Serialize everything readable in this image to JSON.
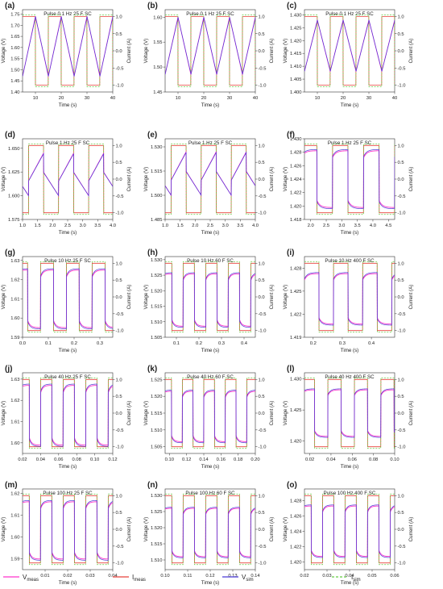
{
  "legend": [
    {
      "key": "Vmeas",
      "base": "V",
      "sub": "meas",
      "color": "#ff33cc",
      "dash": false
    },
    {
      "key": "Imeas",
      "base": "I",
      "sub": "meas",
      "color": "#e8403a",
      "dash": false
    },
    {
      "key": "Vsim",
      "base": "V",
      "sub": "sim",
      "color": "#4b3bd6",
      "dash": false
    },
    {
      "key": "Isim",
      "base": "I",
      "sub": "sim",
      "color": "#66cc44",
      "dash": true
    }
  ],
  "colors": {
    "vmeas": "#ff33cc",
    "imeas": "#e8403a",
    "vsim": "#4b3bd6",
    "isim": "#66cc44",
    "axis": "#333333"
  },
  "chart_data": [
    {
      "panel": "(a)",
      "type": "line",
      "title": "Pulse 0.1 Hz 25 F SC",
      "xlabel": "Time (s)",
      "ylabel": "Voltage (V)",
      "y2label": "Current (A)",
      "xlim": [
        5,
        40
      ],
      "xticks": [
        10,
        20,
        30,
        40
      ],
      "ylim": [
        1.4,
        1.77
      ],
      "yticks": [
        1.4,
        1.45,
        1.5,
        1.55,
        1.6,
        1.65,
        1.7,
        1.75
      ],
      "y2lim": [
        -1.2,
        1.2
      ],
      "y2ticks": [
        -1.0,
        -0.5,
        0.0,
        0.5,
        1.0
      ],
      "period": 10,
      "phase": 5,
      "vlow": 1.47,
      "vhigh": 1.74,
      "waveform": "triangle"
    },
    {
      "panel": "(b)",
      "type": "line",
      "title": "Pulse 0.1 Hz 25 F SC",
      "xlabel": "Time (s)",
      "ylabel": "Voltage (V)",
      "y2label": "Current (A)",
      "xlim": [
        5,
        40
      ],
      "xticks": [
        10,
        20,
        30,
        40
      ],
      "ylim": [
        1.45,
        1.615
      ],
      "yticks": [
        1.45,
        1.5,
        1.55,
        1.6
      ],
      "y2lim": [
        -1.2,
        1.2
      ],
      "y2ticks": [
        -1.0,
        -0.5,
        0.0,
        0.5,
        1.0
      ],
      "period": 10,
      "phase": 5,
      "vlow": 1.485,
      "vhigh": 1.6,
      "waveform": "triangle"
    },
    {
      "panel": "(c)",
      "type": "line",
      "title": "Pulse 0.1 Hz 25 F SC",
      "xlabel": "Time (s)",
      "ylabel": "Voltage (V)",
      "y2label": "Current (A)",
      "xlim": [
        5,
        40
      ],
      "xticks": [
        10,
        20,
        30,
        40
      ],
      "ylim": [
        1.4,
        1.432
      ],
      "yticks": [
        1.4,
        1.405,
        1.41,
        1.415,
        1.42,
        1.425,
        1.43
      ],
      "y2lim": [
        -1.2,
        1.2
      ],
      "y2ticks": [
        -1.0,
        -0.5,
        0.0,
        0.5,
        1.0
      ],
      "period": 10,
      "phase": 5,
      "vlow": 1.408,
      "vhigh": 1.428,
      "waveform": "triangle"
    },
    {
      "panel": "(d)",
      "type": "line",
      "title": "Pulse 1 Hz 25 F SC",
      "xlabel": "Time (s)",
      "ylabel": "Voltage (V)",
      "y2label": "Current (A)",
      "xlim": [
        1.0,
        4.0
      ],
      "xticks": [
        1.0,
        1.5,
        2.0,
        2.5,
        3.0,
        3.5,
        4.0
      ],
      "ylim": [
        1.575,
        1.66
      ],
      "yticks": [
        1.575,
        1.6,
        1.625,
        1.65
      ],
      "y2lim": [
        -1.2,
        1.2
      ],
      "y2ticks": [
        -1.0,
        -0.5,
        0.0,
        0.5,
        1.0
      ],
      "period": 1,
      "phase": 0.2,
      "vlow": 1.6,
      "vhigh": 1.645,
      "waveform": "sawjump"
    },
    {
      "panel": "(e)",
      "type": "line",
      "title": "Pulse 1 Hz 25 F SC",
      "xlabel": "Time (s)",
      "ylabel": "Voltage (V)",
      "y2label": "Current (A)",
      "xlim": [
        1.0,
        4.0
      ],
      "xticks": [
        1.0,
        1.5,
        2.0,
        2.5,
        3.0,
        3.5,
        4.0
      ],
      "ylim": [
        1.485,
        1.535
      ],
      "yticks": [
        1.485,
        1.5,
        1.515,
        1.53
      ],
      "y2lim": [
        -1.2,
        1.2
      ],
      "y2ticks": [
        -1.0,
        -0.5,
        0.0,
        0.5,
        1.0
      ],
      "period": 1,
      "phase": 0.2,
      "vlow": 1.5,
      "vhigh": 1.527,
      "waveform": "sawjump"
    },
    {
      "panel": "(f)",
      "type": "line",
      "title": "Pulse 1 Hz 25 F SC",
      "xlabel": "Time (s)",
      "ylabel": "Voltage (V)",
      "y2label": "Current (A)",
      "xlim": [
        1.8,
        4.7
      ],
      "xticks": [
        2.0,
        2.5,
        3.0,
        3.5,
        4.0,
        4.5
      ],
      "ylim": [
        1.418,
        1.43
      ],
      "yticks": [
        1.418,
        1.42,
        1.422,
        1.424,
        1.426,
        1.428,
        1.43
      ],
      "y2lim": [
        -1.2,
        1.2
      ],
      "y2ticks": [
        -1.0,
        -0.5,
        0.0,
        0.5,
        1.0
      ],
      "period": 1,
      "phase": 1.7,
      "vlow": 1.4195,
      "vhigh": 1.4285,
      "waveform": "square"
    },
    {
      "panel": "(g)",
      "type": "line",
      "title": "Pulse 10 Hz 25 F SC",
      "xlabel": "Time (s)",
      "ylabel": "Voltage (V)",
      "y2label": "Current (A)",
      "xlim": [
        0.0,
        0.35
      ],
      "xticks": [
        0.0,
        0.1,
        0.2,
        0.3
      ],
      "ylim": [
        1.59,
        1.632
      ],
      "yticks": [
        1.59,
        1.6,
        1.61,
        1.62,
        1.63
      ],
      "y2lim": [
        -1.2,
        1.2
      ],
      "y2ticks": [
        -1.0,
        -0.5,
        0.0,
        0.5,
        1.0
      ],
      "period": 0.1,
      "phase": -0.03,
      "vlow": 1.594,
      "vhigh": 1.626,
      "waveform": "square"
    },
    {
      "panel": "(h)",
      "type": "line",
      "title": "Pulse 10 Hz 60 F SC",
      "xlabel": "Time (s)",
      "ylabel": "Voltage (V)",
      "y2label": "Current (A)",
      "xlim": [
        0.05,
        0.45
      ],
      "xticks": [
        0.1,
        0.2,
        0.3,
        0.4
      ],
      "ylim": [
        1.505,
        1.531
      ],
      "yticks": [
        1.505,
        1.51,
        1.515,
        1.52,
        1.525,
        1.53
      ],
      "y2lim": [
        -1.2,
        1.2
      ],
      "y2ticks": [
        -1.0,
        -0.5,
        0.0,
        0.5,
        1.0
      ],
      "period": 0.1,
      "phase": 0.03,
      "vlow": 1.508,
      "vhigh": 1.526,
      "waveform": "square"
    },
    {
      "panel": "(i)",
      "type": "line",
      "title": "Pulse 10 Hz 400 F SC",
      "xlabel": "Time (s)",
      "ylabel": "Voltage (V)",
      "y2label": "Current (A)",
      "xlim": [
        0.17,
        0.48
      ],
      "xticks": [
        0.2,
        0.3,
        0.4
      ],
      "ylim": [
        1.419,
        1.4295
      ],
      "yticks": [
        1.419,
        1.422,
        1.425,
        1.428
      ],
      "y2lim": [
        -1.2,
        1.2
      ],
      "y2ticks": [
        -1.0,
        -0.5,
        0.0,
        0.5,
        1.0
      ],
      "period": 0.1,
      "phase": 0.17,
      "vlow": 1.4205,
      "vhigh": 1.4275,
      "waveform": "square"
    },
    {
      "panel": "(j)",
      "type": "line",
      "title": "Pulse 40 Hz 25 F SC",
      "xlabel": "Time (s)",
      "ylabel": "Voltage (V)",
      "y2label": "Current (A)",
      "xlim": [
        0.02,
        0.12
      ],
      "xticks": [
        0.02,
        0.04,
        0.06,
        0.08,
        0.1,
        0.12
      ],
      "ylim": [
        1.595,
        1.633
      ],
      "yticks": [
        1.6,
        1.61,
        1.62,
        1.63
      ],
      "y2lim": [
        -1.2,
        1.2
      ],
      "y2ticks": [
        -1.0,
        -0.5,
        0.0,
        0.5,
        1.0
      ],
      "period": 0.025,
      "phase": 0.015,
      "vlow": 1.598,
      "vhigh": 1.628,
      "waveform": "square"
    },
    {
      "panel": "(k)",
      "type": "line",
      "title": "Pulse 40 Hz 60 F SC",
      "xlabel": "Time (s)",
      "ylabel": "Voltage (V)",
      "y2label": "Current (A)",
      "xlim": [
        0.095,
        0.2
      ],
      "xticks": [
        0.1,
        0.12,
        0.14,
        0.16,
        0.18,
        0.2
      ],
      "ylim": [
        1.503,
        1.527
      ],
      "yticks": [
        1.505,
        1.51,
        1.515,
        1.52,
        1.525
      ],
      "y2lim": [
        -1.2,
        1.2
      ],
      "y2ticks": [
        -1.0,
        -0.5,
        0.0,
        0.5,
        1.0
      ],
      "period": 0.025,
      "phase": 0.09,
      "vlow": 1.506,
      "vhigh": 1.522,
      "waveform": "square"
    },
    {
      "panel": "(l)",
      "type": "line",
      "title": "Pulse 40 Hz 400 F SC",
      "xlabel": "Time (s)",
      "ylabel": "Voltage (V)",
      "y2label": "Current (A)",
      "xlim": [
        0.015,
        0.1
      ],
      "xticks": [
        0.02,
        0.04,
        0.06,
        0.08,
        0.1
      ],
      "ylim": [
        1.418,
        1.431
      ],
      "yticks": [
        1.42,
        1.425,
        1.43
      ],
      "y2lim": [
        -1.2,
        1.2
      ],
      "y2ticks": [
        -1.0,
        -0.5,
        0.0,
        0.5,
        1.0
      ],
      "period": 0.025,
      "phase": 0.012,
      "vlow": 1.4205,
      "vhigh": 1.4285,
      "waveform": "square"
    },
    {
      "panel": "(m)",
      "type": "line",
      "title": "Pulse 100 Hz 25 F SC",
      "xlabel": "Time (s)",
      "ylabel": "Voltage (V)",
      "y2label": "Current (A)",
      "xlim": [
        0.0,
        0.04
      ],
      "xticks": [
        0.01,
        0.02,
        0.03,
        0.04
      ],
      "ylim": [
        1.585,
        1.622
      ],
      "yticks": [
        1.59,
        1.6,
        1.61,
        1.62
      ],
      "y2lim": [
        -1.2,
        1.2
      ],
      "y2ticks": [
        -1.0,
        -0.5,
        0.0,
        0.5,
        1.0
      ],
      "period": 0.01,
      "phase": -0.002,
      "vlow": 1.589,
      "vhigh": 1.617,
      "waveform": "square"
    },
    {
      "panel": "(n)",
      "type": "line",
      "title": "Pulse 100 Hz 60 F SC",
      "xlabel": "Time (s)",
      "ylabel": "Voltage (V)",
      "y2label": "Current (A)",
      "xlim": [
        0.1,
        0.14
      ],
      "xticks": [
        0.1,
        0.11,
        0.12,
        0.13,
        0.14
      ],
      "ylim": [
        1.507,
        1.532
      ],
      "yticks": [
        1.51,
        1.515,
        1.52,
        1.525,
        1.53
      ],
      "y2lim": [
        -1.2,
        1.2
      ],
      "y2ticks": [
        -1.0,
        -0.5,
        0.0,
        0.5,
        1.0
      ],
      "period": 0.01,
      "phase": 0.098,
      "vlow": 1.5105,
      "vhigh": 1.5265,
      "waveform": "square"
    },
    {
      "panel": "(o)",
      "type": "line",
      "title": "Pulse 100 Hz 400 F SC",
      "xlabel": "Time (s)",
      "ylabel": "Voltage (V)",
      "y2label": "Current (A)",
      "xlim": [
        0.02,
        0.06
      ],
      "xticks": [
        0.02,
        0.03,
        0.04,
        0.05,
        0.06
      ],
      "ylim": [
        1.419,
        1.4295
      ],
      "yticks": [
        1.42,
        1.422,
        1.424,
        1.426,
        1.428
      ],
      "y2lim": [
        -1.2,
        1.2
      ],
      "y2ticks": [
        -1.0,
        -0.5,
        0.0,
        0.5,
        1.0
      ],
      "period": 0.01,
      "phase": 0.018,
      "vlow": 1.4205,
      "vhigh": 1.4275,
      "waveform": "square"
    }
  ]
}
